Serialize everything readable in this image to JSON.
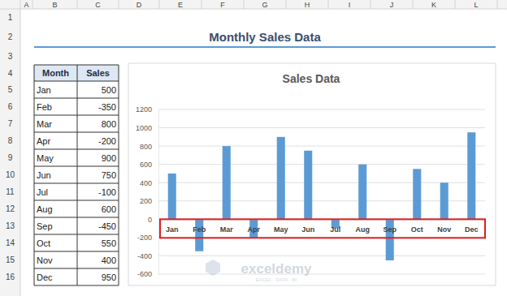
{
  "sheet": {
    "columns": [
      "A",
      "B",
      "C",
      "D",
      "E",
      "F",
      "G",
      "H",
      "I",
      "J",
      "K",
      "L"
    ],
    "rows": [
      1,
      2,
      3,
      4,
      5,
      6,
      7,
      8,
      9,
      10,
      11,
      12,
      13,
      14,
      15,
      16
    ]
  },
  "header": {
    "title": "Monthly Sales Data"
  },
  "table": {
    "columns": [
      "Month",
      "Sales"
    ],
    "rows": [
      [
        "Jan",
        500
      ],
      [
        "Feb",
        -350
      ],
      [
        "Mar",
        800
      ],
      [
        "Apr",
        -200
      ],
      [
        "May",
        900
      ],
      [
        "Jun",
        750
      ],
      [
        "Jul",
        -100
      ],
      [
        "Aug",
        600
      ],
      [
        "Sep",
        -450
      ],
      [
        "Oct",
        550
      ],
      [
        "Nov",
        400
      ],
      [
        "Dec",
        950
      ]
    ]
  },
  "watermark": {
    "text": "exceldemy",
    "tagline": "EXCEL · DATA · BI"
  },
  "chart_data": {
    "type": "bar",
    "title": "Sales Data",
    "categories": [
      "Jan",
      "Feb",
      "Mar",
      "Apr",
      "May",
      "Jun",
      "Jul",
      "Aug",
      "Sep",
      "Oct",
      "Nov",
      "Dec"
    ],
    "values": [
      500,
      -350,
      800,
      -200,
      900,
      750,
      -100,
      600,
      -450,
      550,
      400,
      950
    ],
    "color": "#5b9bd5",
    "ylim": [
      -600,
      1200
    ],
    "yticks": [
      -600,
      -400,
      -200,
      0,
      200,
      400,
      600,
      800,
      1000,
      1200
    ],
    "grid": true
  }
}
